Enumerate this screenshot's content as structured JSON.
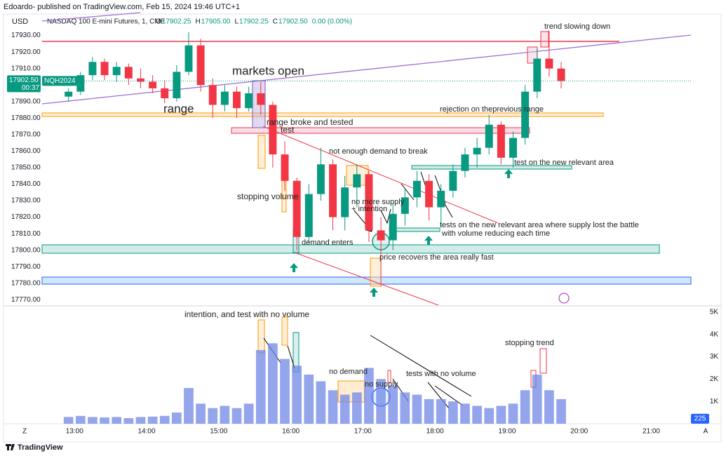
{
  "header": {
    "publisher": "Edoardo- published on TradingView.com, Feb 15, 2024 19:46 UTC+1",
    "currency": "USD",
    "symbol_title": "NASDAQ 100 E-mini Futures, 1, CME",
    "ohlc": [
      {
        "label": "O",
        "value": "17902.25"
      },
      {
        "label": "H",
        "value": "17905.00"
      },
      {
        "label": "L",
        "value": "17902.25"
      },
      {
        "label": "C",
        "value": "17902.50"
      }
    ],
    "change": "0.00 (0.00%)"
  },
  "chart_data": [
    {
      "type": "candlestick",
      "x": [
        "12:50",
        "13:00",
        "13:10",
        "13:20",
        "13:30",
        "13:40",
        "13:50",
        "14:00",
        "14:10",
        "14:20",
        "14:30",
        "14:40",
        "14:50",
        "15:00",
        "15:10",
        "15:20",
        "15:30",
        "15:40",
        "15:50",
        "16:00",
        "16:10",
        "16:20",
        "16:30",
        "16:40",
        "16:50",
        "17:00",
        "17:10",
        "17:20",
        "17:30",
        "17:40",
        "17:50",
        "18:00",
        "18:10",
        "18:20",
        "18:30",
        "18:40",
        "18:50",
        "19:00",
        "19:10",
        "19:20",
        "19:30",
        "19:40"
      ],
      "open": [
        17893,
        17896,
        17906,
        17914,
        17906,
        17911,
        17904,
        17902,
        17898,
        17892,
        17908,
        17924,
        17900,
        17888,
        17896,
        17886,
        17895,
        17888,
        17858,
        17842,
        17808,
        17834,
        17852,
        17820,
        17838,
        17846,
        17812,
        17806,
        17822,
        17832,
        17842,
        17826,
        17836,
        17848,
        17858,
        17862,
        17876,
        17856,
        17868,
        17896,
        17916,
        17910
      ],
      "high": [
        17898,
        17908,
        17917,
        17916,
        17914,
        17913,
        17910,
        17906,
        17903,
        17912,
        17932,
        17928,
        17904,
        17900,
        17899,
        17899,
        17902,
        17890,
        17866,
        17844,
        17840,
        17862,
        17855,
        17845,
        17852,
        17848,
        17820,
        17828,
        17838,
        17848,
        17846,
        17840,
        17852,
        17862,
        17868,
        17882,
        17878,
        17872,
        17900,
        17922,
        17933,
        17914
      ],
      "low": [
        17890,
        17894,
        17903,
        17903,
        17902,
        17900,
        17898,
        17895,
        17889,
        17890,
        17906,
        17896,
        17880,
        17884,
        17880,
        17884,
        17882,
        17850,
        17836,
        17800,
        17804,
        17830,
        17812,
        17812,
        17826,
        17805,
        17778,
        17800,
        17815,
        17826,
        17818,
        17814,
        17832,
        17844,
        17850,
        17858,
        17852,
        17850,
        17864,
        17892,
        17905,
        17898
      ],
      "close": [
        17896,
        17906,
        17914,
        17906,
        17911,
        17904,
        17902,
        17898,
        17892,
        17908,
        17924,
        17900,
        17888,
        17896,
        17886,
        17895,
        17888,
        17858,
        17842,
        17808,
        17834,
        17852,
        17820,
        17838,
        17846,
        17812,
        17806,
        17822,
        17832,
        17842,
        17826,
        17836,
        17848,
        17858,
        17862,
        17876,
        17856,
        17868,
        17896,
        17916,
        17910,
        17902.5
      ],
      "up_color": "#089981",
      "down_color": "#f23645",
      "xlim": [
        "12:33",
        "21:33"
      ],
      "xticks": [
        "13:00",
        "14:00",
        "15:00",
        "16:00",
        "17:00",
        "18:00",
        "19:00",
        "20:00",
        "21:00"
      ],
      "ylim": [
        17768,
        17943
      ],
      "yticks": [
        {
          "value": 17770,
          "label": "17770.00"
        },
        {
          "value": 17780,
          "label": "17780.00"
        },
        {
          "value": 17790,
          "label": "17790.00"
        },
        {
          "value": 17800,
          "label": "17800.00"
        },
        {
          "value": 17810,
          "label": "17810.00"
        },
        {
          "value": 17820,
          "label": "17820.00"
        },
        {
          "value": 17830,
          "label": "17830.00"
        },
        {
          "value": 17840,
          "label": "17840.00"
        },
        {
          "value": 17850,
          "label": "17850.00"
        },
        {
          "value": 17860,
          "label": "17860.00"
        },
        {
          "value": 17870,
          "label": "17870.00"
        },
        {
          "value": 17880,
          "label": "17880.00"
        },
        {
          "value": 17890,
          "label": "17890.00"
        },
        {
          "value": 17900,
          "label": "17900.00"
        },
        {
          "value": 17910,
          "label": "17910.00"
        },
        {
          "value": 17920,
          "label": "17920.00"
        },
        {
          "value": 17930,
          "label": "17930.00"
        }
      ],
      "last_price": {
        "value": 17902.5,
        "label": "17902.50"
      },
      "countdown": "00:37",
      "symbol": "NQH2024",
      "annotations": [
        "trend slowing down",
        "markets open",
        "range",
        "rejection on theprevious range",
        "range broke and tested",
        "test",
        "not enough demand to break",
        "test on the new relevant area",
        "stopping volume",
        "no more supply",
        "+ intention",
        "tests on the new relevant area where supply lost the battle",
        "with volume reducing each time",
        "demand enters",
        "price recovers the area really fast"
      ]
    },
    {
      "type": "bar",
      "values": [
        300,
        350,
        300,
        280,
        300,
        250,
        300,
        320,
        350,
        500,
        1600,
        900,
        700,
        800,
        700,
        900,
        3300,
        3600,
        2900,
        2600,
        2200,
        1900,
        1500,
        1300,
        1400,
        2500,
        2000,
        1700,
        1400,
        1300,
        1100,
        1100,
        1000,
        900,
        800,
        700,
        800,
        900,
        1500,
        2200,
        1500,
        1100
      ],
      "color": "#7087e6",
      "ylim": [
        0,
        5150
      ],
      "yticks": [
        {
          "value": 1000,
          "label": "1K"
        },
        {
          "value": 2000,
          "label": "2K"
        },
        {
          "value": 3000,
          "label": "3K"
        },
        {
          "value": 4000,
          "label": "4K"
        },
        {
          "value": 5000,
          "label": "5K"
        }
      ],
      "current_volume": 225,
      "annotations": [
        "intention, and test with no volume",
        "stopping trend",
        "no demand",
        "tests with no volume",
        "no supply"
      ]
    }
  ],
  "footer": {
    "brand": "TradingView",
    "left_button": "Z",
    "right_button": "A"
  }
}
